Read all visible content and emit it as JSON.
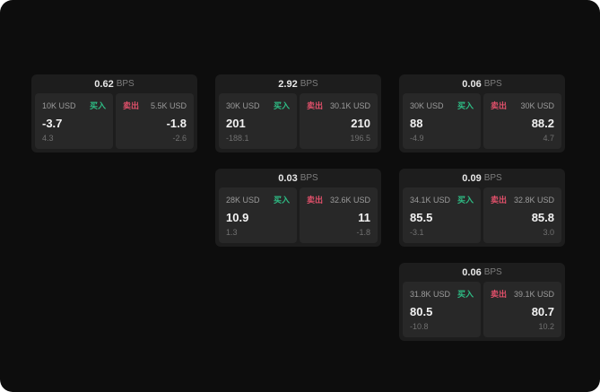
{
  "labels": {
    "buy": "买入",
    "sell": "卖出",
    "bps_unit": "BPS"
  },
  "colors": {
    "buy": "#2ebd85",
    "sell": "#e0506a",
    "background": "#0d0d0d",
    "card": "#1d1d1d",
    "panel": "#282828"
  },
  "cards": [
    {
      "col": 1,
      "row": 1,
      "spread": "0.62",
      "buy": {
        "amount": "10K USD",
        "price": "-3.7",
        "sub": "4.3"
      },
      "sell": {
        "amount": "5.5K USD",
        "price": "-1.8",
        "sub": "-2.6"
      }
    },
    {
      "col": 2,
      "row": 1,
      "spread": "2.92",
      "buy": {
        "amount": "30K USD",
        "price": "201",
        "sub": "-188.1"
      },
      "sell": {
        "amount": "30.1K USD",
        "price": "210",
        "sub": "196.5"
      }
    },
    {
      "col": 3,
      "row": 1,
      "spread": "0.06",
      "buy": {
        "amount": "30K USD",
        "price": "88",
        "sub": "-4.9"
      },
      "sell": {
        "amount": "30K USD",
        "price": "88.2",
        "sub": "4.7"
      }
    },
    {
      "col": 2,
      "row": 2,
      "spread": "0.03",
      "buy": {
        "amount": "28K USD",
        "price": "10.9",
        "sub": "1.3"
      },
      "sell": {
        "amount": "32.6K USD",
        "price": "11",
        "sub": "-1.8"
      }
    },
    {
      "col": 3,
      "row": 2,
      "spread": "0.09",
      "buy": {
        "amount": "34.1K USD",
        "price": "85.5",
        "sub": "-3.1"
      },
      "sell": {
        "amount": "32.8K USD",
        "price": "85.8",
        "sub": "3.0"
      }
    },
    {
      "col": 3,
      "row": 3,
      "spread": "0.06",
      "buy": {
        "amount": "31.8K USD",
        "price": "80.5",
        "sub": "-10.8"
      },
      "sell": {
        "amount": "39.1K USD",
        "price": "80.7",
        "sub": "10.2"
      }
    }
  ]
}
